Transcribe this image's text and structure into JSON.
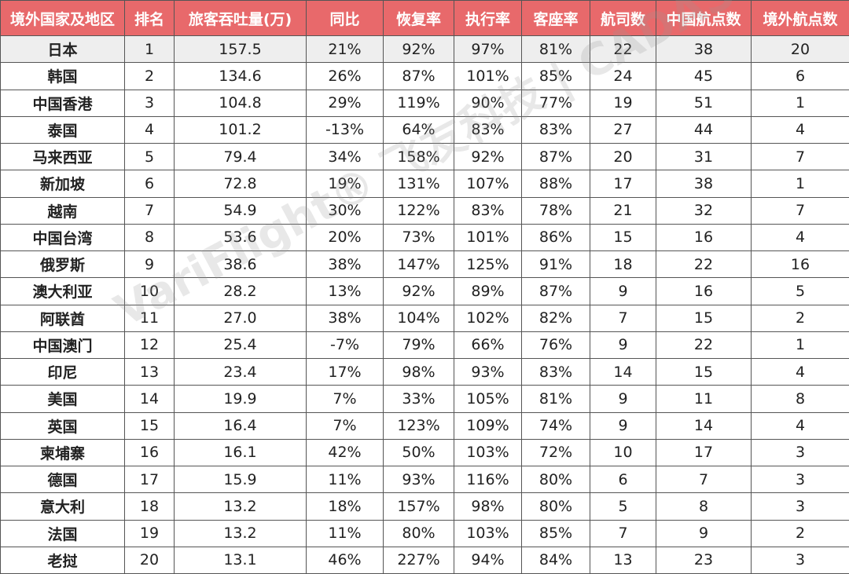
{
  "table": {
    "header": [
      "境外国家及地区",
      "排名",
      "旅客吞吐量(万)",
      "同比",
      "恢复率",
      "执行率",
      "客座率",
      "航司数",
      "中国航点数",
      "境外航点数"
    ],
    "rows": [
      [
        "日本",
        "1",
        "157.5",
        "21%",
        "92%",
        "97%",
        "81%",
        "22",
        "38",
        "20"
      ],
      [
        "韩国",
        "2",
        "134.6",
        "26%",
        "87%",
        "101%",
        "85%",
        "24",
        "45",
        "6"
      ],
      [
        "中国香港",
        "3",
        "104.8",
        "29%",
        "119%",
        "90%",
        "77%",
        "19",
        "51",
        "1"
      ],
      [
        "泰国",
        "4",
        "101.2",
        "-13%",
        "64%",
        "83%",
        "83%",
        "27",
        "44",
        "4"
      ],
      [
        "马来西亚",
        "5",
        "79.4",
        "34%",
        "158%",
        "92%",
        "87%",
        "20",
        "31",
        "7"
      ],
      [
        "新加坡",
        "6",
        "72.8",
        "19%",
        "131%",
        "107%",
        "88%",
        "17",
        "38",
        "1"
      ],
      [
        "越南",
        "7",
        "54.9",
        "30%",
        "122%",
        "83%",
        "78%",
        "21",
        "32",
        "7"
      ],
      [
        "中国台湾",
        "8",
        "53.6",
        "20%",
        "73%",
        "101%",
        "86%",
        "15",
        "16",
        "4"
      ],
      [
        "俄罗斯",
        "9",
        "38.6",
        "38%",
        "147%",
        "125%",
        "91%",
        "18",
        "22",
        "16"
      ],
      [
        "澳大利亚",
        "10",
        "28.2",
        "13%",
        "92%",
        "89%",
        "87%",
        "9",
        "16",
        "5"
      ],
      [
        "阿联酋",
        "11",
        "27.0",
        "38%",
        "104%",
        "102%",
        "82%",
        "7",
        "15",
        "2"
      ],
      [
        "中国澳门",
        "12",
        "25.4",
        "-7%",
        "79%",
        "66%",
        "76%",
        "9",
        "22",
        "1"
      ],
      [
        "印尼",
        "13",
        "23.4",
        "17%",
        "98%",
        "93%",
        "83%",
        "14",
        "15",
        "4"
      ],
      [
        "美国",
        "14",
        "19.9",
        "7%",
        "33%",
        "105%",
        "81%",
        "9",
        "11",
        "8"
      ],
      [
        "英国",
        "15",
        "16.4",
        "7%",
        "123%",
        "109%",
        "74%",
        "9",
        "14",
        "4"
      ],
      [
        "柬埔寨",
        "16",
        "16.1",
        "42%",
        "50%",
        "103%",
        "72%",
        "10",
        "17",
        "3"
      ],
      [
        "德国",
        "17",
        "15.9",
        "11%",
        "93%",
        "116%",
        "80%",
        "6",
        "7",
        "3"
      ],
      [
        "意大利",
        "18",
        "13.2",
        "18%",
        "157%",
        "98%",
        "80%",
        "5",
        "8",
        "3"
      ],
      [
        "法国",
        "19",
        "13.2",
        "11%",
        "80%",
        "103%",
        "85%",
        "7",
        "9",
        "2"
      ],
      [
        "老挝",
        "20",
        "13.1",
        "46%",
        "227%",
        "94%",
        "84%",
        "13",
        "23",
        "3"
      ]
    ]
  },
  "watermark": "VariFlight® 飞友科技 | CADAS®"
}
